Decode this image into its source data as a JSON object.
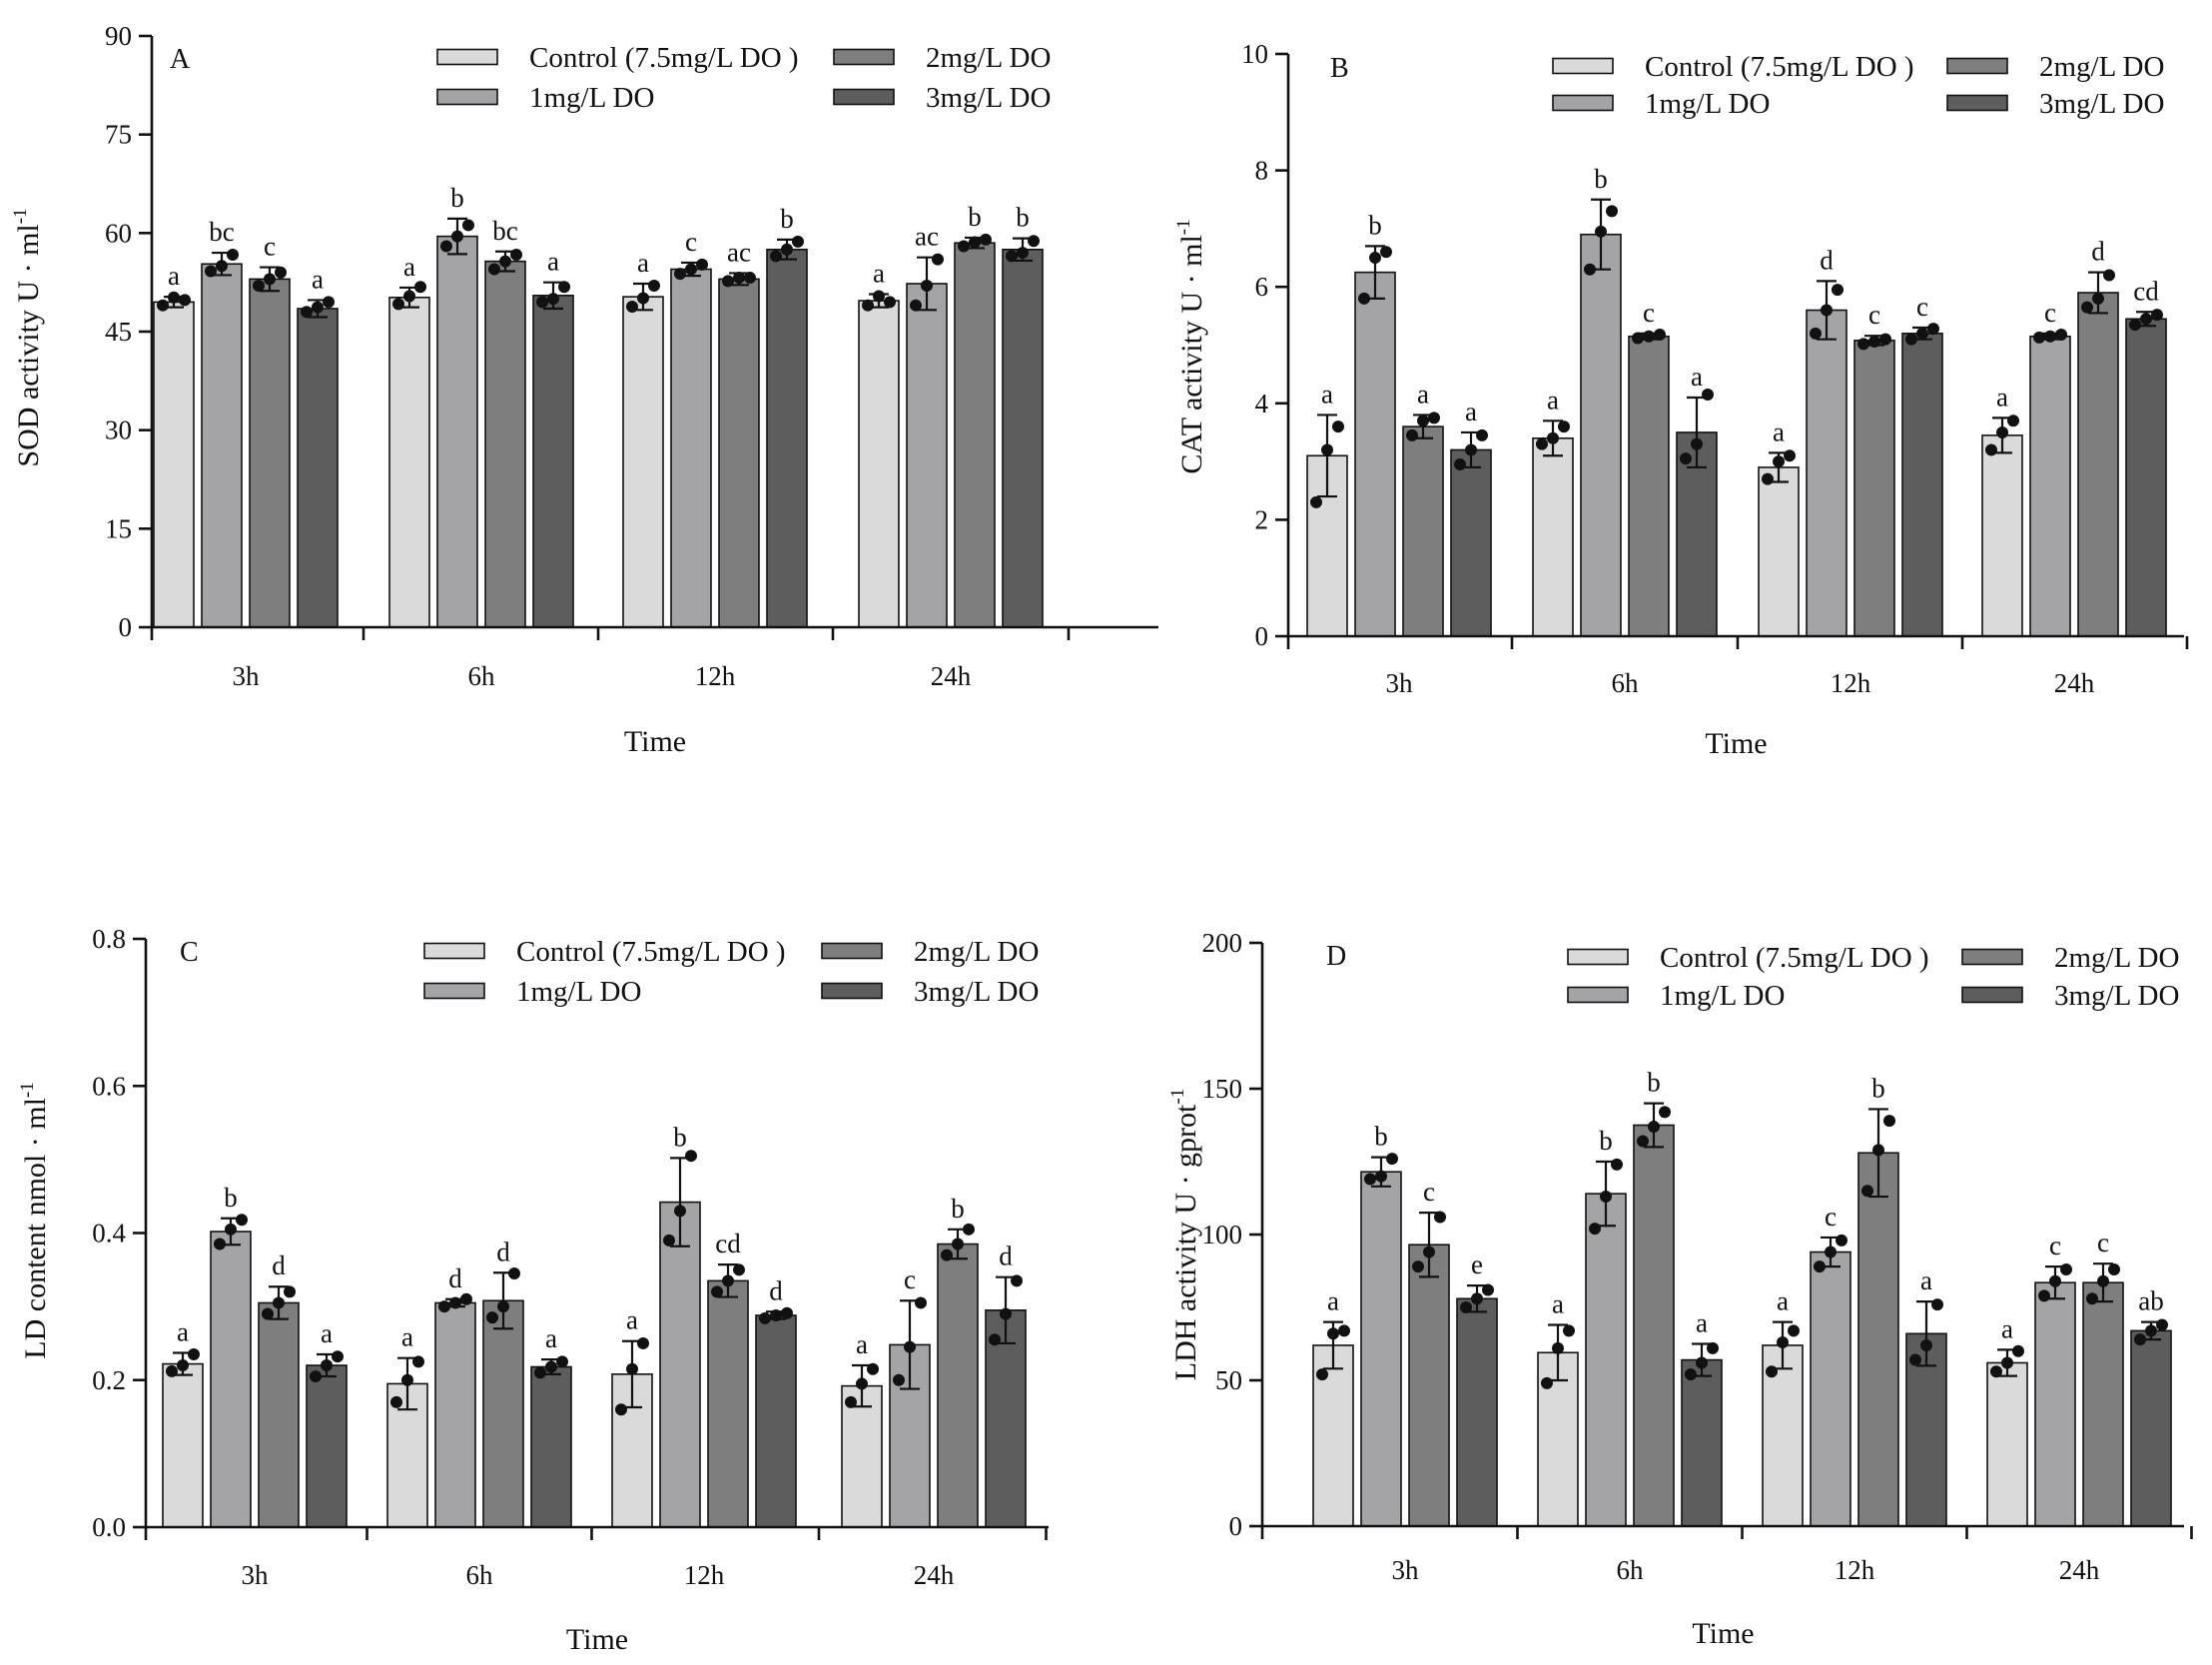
{
  "chart_data": [
    {
      "type": "bar",
      "panel_label": "A",
      "categories": [
        "3h",
        "6h",
        "12h",
        "24h"
      ],
      "xlabel": "Time",
      "ylabel_main": "SOD activity U · ml",
      "ylabel_sup": "-1",
      "ylim": [
        0,
        90
      ],
      "yticks": [
        "0",
        "15",
        "30",
        "45",
        "60",
        "75",
        "90"
      ],
      "legend": [
        "Control (7.5mg/L DO )",
        "1mg/L DO",
        "2mg/L DO",
        "3mg/L DO"
      ],
      "series": [
        {
          "name": "Control (7.5mg/L DO )",
          "values": [
            49.5,
            50.2,
            50.3,
            49.7
          ],
          "errors": [
            0.8,
            1.5,
            2.0,
            1.0
          ],
          "points": [
            [
              49.0,
              50.2,
              49.8
            ],
            [
              49.2,
              50.4,
              51.8
            ],
            [
              48.8,
              50.1,
              52.0
            ],
            [
              49.0,
              50.4,
              49.5
            ]
          ],
          "letters": [
            "a",
            "a",
            "a",
            "a"
          ]
        },
        {
          "name": "1mg/L DO",
          "values": [
            55.3,
            59.5,
            54.5,
            52.3
          ],
          "errors": [
            1.7,
            2.7,
            1.0,
            4.0
          ],
          "points": [
            [
              54.2,
              55.0,
              56.7
            ],
            [
              58.0,
              59.5,
              61.2
            ],
            [
              53.8,
              54.5,
              55.2
            ],
            [
              49.0,
              52.0,
              56.0
            ]
          ],
          "letters": [
            "bc",
            "b",
            "c",
            "ac"
          ]
        },
        {
          "name": "2mg/L DO",
          "values": [
            53.0,
            55.7,
            53.0,
            58.5
          ],
          "errors": [
            1.8,
            1.5,
            0.9,
            0.8
          ],
          "points": [
            [
              52.0,
              53.0,
              54.0
            ],
            [
              54.5,
              55.7,
              56.7
            ],
            [
              52.7,
              53.2,
              53.2
            ],
            [
              58.0,
              58.6,
              59.0
            ]
          ],
          "letters": [
            "c",
            "bc",
            "ac",
            "b"
          ]
        },
        {
          "name": "3mg/L DO",
          "values": [
            48.5,
            50.5,
            57.5,
            57.5
          ],
          "errors": [
            1.3,
            2.0,
            1.5,
            1.7
          ],
          "points": [
            [
              48.0,
              48.7,
              49.5
            ],
            [
              49.5,
              50.0,
              51.8
            ],
            [
              56.5,
              57.5,
              58.7
            ],
            [
              56.5,
              57.0,
              58.8
            ]
          ],
          "letters": [
            "a",
            "a",
            "b",
            "b"
          ]
        }
      ]
    },
    {
      "type": "bar",
      "panel_label": "B",
      "categories": [
        "3h",
        "6h",
        "12h",
        "24h"
      ],
      "xlabel": "Time",
      "ylabel_main": "CAT activity U · ml",
      "ylabel_sup": "-1",
      "ylim": [
        0,
        10
      ],
      "yticks": [
        "0",
        "2",
        "4",
        "6",
        "8",
        "10"
      ],
      "legend": [
        "Control (7.5mg/L DO )",
        "1mg/L DO",
        "2mg/L DO",
        "3mg/L DO"
      ],
      "series": [
        {
          "name": "Control (7.5mg/L DO )",
          "values": [
            3.1,
            3.4,
            2.9,
            3.45
          ],
          "errors": [
            0.7,
            0.3,
            0.25,
            0.3
          ],
          "points": [
            [
              2.3,
              3.2,
              3.6
            ],
            [
              3.3,
              3.4,
              3.6
            ],
            [
              2.7,
              3.0,
              3.1
            ],
            [
              3.2,
              3.5,
              3.7
            ]
          ],
          "letters": [
            "a",
            "a",
            "a",
            "a"
          ]
        },
        {
          "name": "1mg/L DO",
          "values": [
            6.25,
            6.9,
            5.6,
            5.15
          ],
          "errors": [
            0.45,
            0.6,
            0.5,
            0.05
          ],
          "points": [
            [
              5.8,
              6.5,
              6.6
            ],
            [
              6.3,
              6.95,
              7.3
            ],
            [
              5.2,
              5.6,
              5.95
            ],
            [
              5.13,
              5.15,
              5.18
            ]
          ],
          "letters": [
            "b",
            "b",
            "d",
            "c"
          ]
        },
        {
          "name": "2mg/L DO",
          "values": [
            3.6,
            5.15,
            5.08,
            5.9
          ],
          "errors": [
            0.2,
            0.05,
            0.08,
            0.35
          ],
          "points": [
            [
              3.45,
              3.7,
              3.75
            ],
            [
              5.12,
              5.15,
              5.18
            ],
            [
              5.02,
              5.06,
              5.1
            ],
            [
              5.65,
              5.8,
              6.2
            ]
          ],
          "letters": [
            "a",
            "c",
            "c",
            "d"
          ]
        },
        {
          "name": "3mg/L DO",
          "values": [
            3.2,
            3.5,
            5.2,
            5.45
          ],
          "errors": [
            0.3,
            0.6,
            0.1,
            0.12
          ],
          "points": [
            [
              2.95,
              3.2,
              3.45
            ],
            [
              3.05,
              3.3,
              4.15
            ],
            [
              5.1,
              5.2,
              5.28
            ],
            [
              5.35,
              5.45,
              5.52
            ]
          ],
          "letters": [
            "a",
            "a",
            "c",
            "cd"
          ]
        }
      ]
    },
    {
      "type": "bar",
      "panel_label": "C",
      "categories": [
        "3h",
        "6h",
        "12h",
        "24h"
      ],
      "xlabel": "Time",
      "ylabel_main": "LD  content  nmol · ml",
      "ylabel_sup": "-1",
      "ylim": [
        0,
        0.8
      ],
      "yticks": [
        "0.0",
        "0.2",
        "0.4",
        "0.6",
        "0.8"
      ],
      "legend": [
        "Control (7.5mg/L DO )",
        "1mg/L DO",
        "2mg/L DO",
        "3mg/L DO"
      ],
      "series": [
        {
          "name": "Control (7.5mg/L DO )",
          "values": [
            0.222,
            0.195,
            0.208,
            0.192
          ],
          "errors": [
            0.015,
            0.035,
            0.045,
            0.028
          ],
          "points": [
            [
              0.212,
              0.22,
              0.235
            ],
            [
              0.17,
              0.2,
              0.225
            ],
            [
              0.16,
              0.215,
              0.25
            ],
            [
              0.17,
              0.195,
              0.215
            ]
          ],
          "letters": [
            "a",
            "a",
            "a",
            "a"
          ]
        },
        {
          "name": "1mg/L DO",
          "values": [
            0.402,
            0.305,
            0.442,
            0.248
          ],
          "errors": [
            0.018,
            0.005,
            0.06,
            0.06
          ],
          "points": [
            [
              0.385,
              0.405,
              0.418
            ],
            [
              0.3,
              0.305,
              0.31
            ],
            [
              0.39,
              0.43,
              0.505
            ],
            [
              0.2,
              0.245,
              0.305
            ]
          ],
          "letters": [
            "b",
            "d",
            "b",
            "c"
          ]
        },
        {
          "name": "2mg/L DO",
          "values": [
            0.305,
            0.308,
            0.335,
            0.385
          ],
          "errors": [
            0.022,
            0.038,
            0.022,
            0.02
          ],
          "points": [
            [
              0.29,
              0.305,
              0.32
            ],
            [
              0.285,
              0.3,
              0.345
            ],
            [
              0.32,
              0.335,
              0.35
            ],
            [
              0.37,
              0.385,
              0.405
            ]
          ],
          "letters": [
            "d",
            "d",
            "cd",
            "b"
          ]
        },
        {
          "name": "3mg/L DO",
          "values": [
            0.22,
            0.218,
            0.288,
            0.295
          ],
          "errors": [
            0.015,
            0.01,
            0.005,
            0.045
          ],
          "points": [
            [
              0.205,
              0.22,
              0.232
            ],
            [
              0.21,
              0.218,
              0.225
            ],
            [
              0.284,
              0.288,
              0.291
            ],
            [
              0.255,
              0.29,
              0.335
            ]
          ],
          "letters": [
            "a",
            "a",
            "d",
            "d"
          ]
        }
      ]
    },
    {
      "type": "bar",
      "panel_label": "D",
      "categories": [
        "3h",
        "6h",
        "12h",
        "24h"
      ],
      "xlabel": "Time",
      "ylabel_main": "LDH  activity  U · gprot",
      "ylabel_sup": "-1",
      "ylim": [
        0,
        200
      ],
      "yticks": [
        "0",
        "50",
        "100",
        "150",
        "200"
      ],
      "legend": [
        "Control (7.5mg/L DO )",
        "1mg/L DO",
        "2mg/L DO",
        "3mg/L DO"
      ],
      "series": [
        {
          "name": "Control (7.5mg/L DO )",
          "values": [
            62,
            59.5,
            62,
            56
          ],
          "errors": [
            8,
            9.5,
            8,
            4.5
          ],
          "points": [
            [
              52,
              66,
              67
            ],
            [
              49,
              61,
              67
            ],
            [
              53,
              63,
              67
            ],
            [
              53,
              56,
              60
            ]
          ],
          "letters": [
            "a",
            "a",
            "a",
            "a"
          ]
        },
        {
          "name": "1mg/L DO",
          "values": [
            121.5,
            114,
            94,
            83.5
          ],
          "errors": [
            5,
            11,
            5,
            5.5
          ],
          "points": [
            [
              119,
              120,
              126
            ],
            [
              102,
              113,
              124
            ],
            [
              89,
              94,
              98
            ],
            [
              79,
              84,
              88
            ]
          ],
          "letters": [
            "b",
            "b",
            "c",
            "c"
          ]
        },
        {
          "name": "2mg/L DO",
          "values": [
            96.5,
            137.5,
            128,
            83.5
          ],
          "errors": [
            11,
            7.5,
            15,
            6.5
          ],
          "points": [
            [
              89,
              94,
              106
            ],
            [
              132,
              137,
              142
            ],
            [
              115,
              129,
              139
            ],
            [
              78,
              84,
              88
            ]
          ],
          "letters": [
            "c",
            "b",
            "b",
            "c"
          ]
        },
        {
          "name": "3mg/L DO",
          "values": [
            78,
            57,
            66,
            67
          ],
          "errors": [
            4.5,
            5.5,
            11,
            3
          ],
          "points": [
            [
              75,
              78,
              81
            ],
            [
              52,
              56,
              61
            ],
            [
              57,
              62,
              76
            ],
            [
              64,
              67,
              69
            ]
          ],
          "letters": [
            "e",
            "a",
            "a",
            "ab"
          ]
        }
      ]
    }
  ],
  "colors": {
    "series": [
      "#dadada",
      "#a4a4a7",
      "#7e7e7e",
      "#5d5d5d"
    ],
    "axis": "#111111",
    "points": "#111111"
  }
}
